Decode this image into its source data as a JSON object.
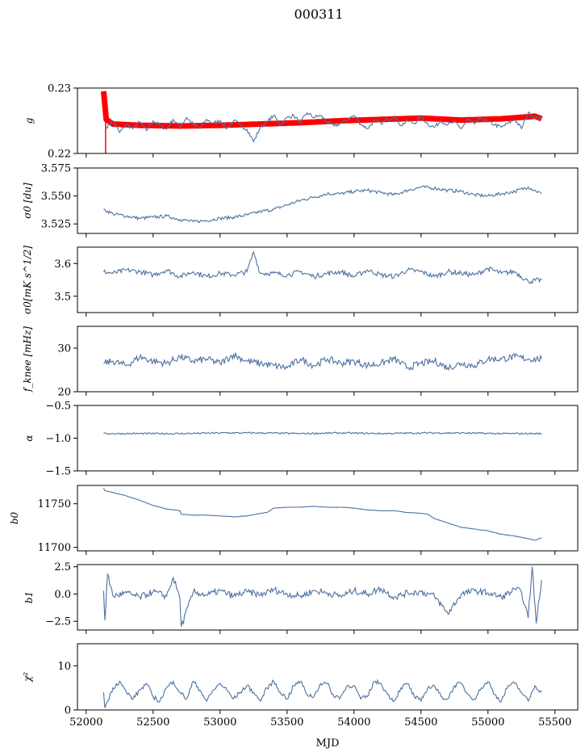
{
  "chart_data": [
    {
      "type": "line",
      "panel": "g",
      "title": "000311",
      "ylabel": "g",
      "ylim": [
        0.22,
        0.23
      ],
      "yticks": [
        0.22,
        0.23
      ],
      "xlim": [
        51935,
        55670
      ],
      "series": [
        {
          "name": "g (smoothed fit)",
          "color": "#ff0000",
          "style": "band",
          "x": [
            52130,
            52150,
            52200,
            52400,
            52700,
            53000,
            53300,
            53600,
            53900,
            54200,
            54500,
            54800,
            55100,
            55300,
            55350,
            55400
          ],
          "y": [
            0.2295,
            0.2252,
            0.2245,
            0.2243,
            0.2242,
            0.2243,
            0.2245,
            0.2247,
            0.225,
            0.2252,
            0.2254,
            0.2251,
            0.2253,
            0.2256,
            0.2257,
            0.2253
          ]
        },
        {
          "name": "g",
          "color": "#4c72a0",
          "x": [
            52150,
            52200,
            52250,
            52300,
            52350,
            52400,
            52450,
            52500,
            52550,
            52600,
            52650,
            52700,
            52750,
            52800,
            52850,
            52900,
            52950,
            53000,
            53050,
            53100,
            53150,
            53200,
            53250,
            53300,
            53350,
            53400,
            53450,
            53500,
            53550,
            53600,
            53650,
            53700,
            53750,
            53800,
            53850,
            53900,
            53950,
            54000,
            54050,
            54100,
            54150,
            54200,
            54250,
            54300,
            54350,
            54400,
            54450,
            54500,
            54550,
            54600,
            54650,
            54700,
            54750,
            54800,
            54850,
            54900,
            54950,
            55000,
            55050,
            55100,
            55150,
            55200,
            55250,
            55300,
            55350,
            55400
          ],
          "y": [
            0.224,
            0.225,
            0.2232,
            0.2245,
            0.2238,
            0.2248,
            0.2235,
            0.225,
            0.2243,
            0.2237,
            0.2252,
            0.224,
            0.2255,
            0.2244,
            0.2238,
            0.2252,
            0.2246,
            0.225,
            0.2238,
            0.225,
            0.2244,
            0.2237,
            0.2218,
            0.224,
            0.2248,
            0.2258,
            0.2244,
            0.2255,
            0.2258,
            0.2247,
            0.2262,
            0.2255,
            0.2258,
            0.2248,
            0.2242,
            0.2246,
            0.2252,
            0.2258,
            0.2245,
            0.2238,
            0.225,
            0.2246,
            0.2252,
            0.2257,
            0.2243,
            0.225,
            0.2246,
            0.2257,
            0.2245,
            0.224,
            0.225,
            0.2244,
            0.2248,
            0.2238,
            0.2252,
            0.2245,
            0.2254,
            0.2248,
            0.2244,
            0.224,
            0.2246,
            0.2252,
            0.2238,
            0.2262,
            0.2255,
            0.2253
          ]
        }
      ]
    },
    {
      "type": "line",
      "panel": "sigma0_du",
      "ylabel": "σ0 [du]",
      "ylim": [
        3.5165,
        3.575
      ],
      "yticks": [
        3.525,
        3.55,
        3.575
      ],
      "series": [
        {
          "name": "sigma0 [du]",
          "color": "#4c72a0",
          "x": [
            52130,
            52200,
            52300,
            52400,
            52500,
            52600,
            52700,
            52800,
            52900,
            53000,
            53100,
            53200,
            53300,
            53400,
            53500,
            53600,
            53700,
            53800,
            53900,
            54000,
            54100,
            54200,
            54300,
            54400,
            54500,
            54600,
            54700,
            54800,
            54900,
            55000,
            55100,
            55200,
            55300,
            55400
          ],
          "y": [
            3.538,
            3.534,
            3.532,
            3.53,
            3.531,
            3.532,
            3.529,
            3.527,
            3.528,
            3.53,
            3.531,
            3.533,
            3.536,
            3.538,
            3.542,
            3.546,
            3.549,
            3.552,
            3.552,
            3.554,
            3.555,
            3.553,
            3.551,
            3.555,
            3.558,
            3.557,
            3.555,
            3.554,
            3.551,
            3.55,
            3.552,
            3.554,
            3.558,
            3.552
          ]
        }
      ]
    },
    {
      "type": "line",
      "panel": "sigma0_mK",
      "ylabel": "σ0[mK s^1/2]",
      "ylim": [
        3.45,
        3.65
      ],
      "yticks": [
        3.5,
        3.6
      ],
      "series": [
        {
          "name": "sigma0 [mK s^1/2]",
          "color": "#4c72a0",
          "x": [
            52130,
            52200,
            52300,
            52400,
            52500,
            52600,
            52700,
            52800,
            52900,
            53000,
            53100,
            53200,
            53250,
            53300,
            53400,
            53500,
            53600,
            53700,
            53800,
            53900,
            54000,
            54100,
            54200,
            54300,
            54400,
            54500,
            54600,
            54700,
            54800,
            54900,
            55000,
            55100,
            55200,
            55300,
            55400
          ],
          "y": [
            3.575,
            3.57,
            3.58,
            3.575,
            3.565,
            3.58,
            3.56,
            3.575,
            3.56,
            3.57,
            3.565,
            3.575,
            3.635,
            3.57,
            3.57,
            3.565,
            3.575,
            3.56,
            3.57,
            3.575,
            3.56,
            3.58,
            3.565,
            3.56,
            3.58,
            3.575,
            3.56,
            3.575,
            3.57,
            3.565,
            3.585,
            3.57,
            3.575,
            3.545,
            3.55
          ]
        }
      ]
    },
    {
      "type": "line",
      "panel": "fknee",
      "ylabel": "f_knee [mHz]",
      "ylim": [
        20,
        35
      ],
      "yticks": [
        20,
        30
      ],
      "series": [
        {
          "name": "f_knee [mHz]",
          "color": "#4c72a0",
          "x": [
            52130,
            52200,
            52300,
            52400,
            52500,
            52600,
            52700,
            52800,
            52900,
            53000,
            53100,
            53200,
            53300,
            53400,
            53500,
            53600,
            53700,
            53800,
            53900,
            54000,
            54100,
            54200,
            54300,
            54400,
            54500,
            54600,
            54700,
            54800,
            54900,
            55000,
            55100,
            55200,
            55300,
            55400
          ],
          "y": [
            26.5,
            27.0,
            26.0,
            28.0,
            27.0,
            26.5,
            28.0,
            27.0,
            27.5,
            26.5,
            28.5,
            27.0,
            26.5,
            26.0,
            25.5,
            27.5,
            26.0,
            27.5,
            26.5,
            27.0,
            26.0,
            26.5,
            27.5,
            25.5,
            26.5,
            27.0,
            25.5,
            26.5,
            26.0,
            27.5,
            27.5,
            28.0,
            27.5,
            27.5
          ]
        }
      ]
    },
    {
      "type": "line",
      "panel": "alpha",
      "ylabel": "α",
      "ylim": [
        -1.5,
        -0.5
      ],
      "yticks": [
        -1.5,
        -1.0,
        -0.5
      ],
      "series": [
        {
          "name": "alpha",
          "color": "#4c72a0",
          "x": [
            52130,
            52400,
            52700,
            53000,
            53300,
            53600,
            53900,
            54200,
            54500,
            54800,
            55100,
            55400
          ],
          "y": [
            -0.93,
            -0.93,
            -0.93,
            -0.92,
            -0.92,
            -0.93,
            -0.92,
            -0.93,
            -0.92,
            -0.92,
            -0.93,
            -0.93
          ]
        }
      ]
    },
    {
      "type": "line",
      "panel": "b0",
      "ylabel": "b0",
      "ylim": [
        11696,
        11771
      ],
      "yticks": [
        11700,
        11750
      ],
      "series": [
        {
          "name": "b0",
          "color": "#4c72a0",
          "x": [
            52130,
            52140,
            52200,
            52300,
            52400,
            52500,
            52600,
            52700,
            52710,
            52800,
            52900,
            53000,
            53100,
            53200,
            53300,
            53350,
            53400,
            53500,
            53600,
            53700,
            53800,
            53900,
            54000,
            54100,
            54200,
            54300,
            54400,
            54500,
            54550,
            54600,
            54700,
            54800,
            54900,
            55000,
            55100,
            55200,
            55300,
            55350,
            55400
          ],
          "y": [
            11768,
            11765,
            11763,
            11759,
            11754,
            11748,
            11744,
            11742,
            11738,
            11737,
            11737,
            11736,
            11735,
            11736,
            11739,
            11740,
            11745,
            11746,
            11746,
            11747,
            11746,
            11746,
            11745,
            11743,
            11742,
            11742,
            11740,
            11739,
            11738,
            11733,
            11728,
            11723,
            11721,
            11719,
            11715,
            11713,
            11710,
            11708,
            11711
          ]
        }
      ]
    },
    {
      "type": "line",
      "panel": "b1",
      "ylabel": "b1",
      "ylim": [
        -3.3,
        2.7
      ],
      "yticks": [
        -2.5,
        0.0,
        2.5
      ],
      "series": [
        {
          "name": "b1",
          "color": "#4c72a0",
          "x": [
            52130,
            52140,
            52160,
            52200,
            52300,
            52400,
            52500,
            52600,
            52650,
            52700,
            52710,
            52800,
            52900,
            53000,
            53100,
            53200,
            53300,
            53400,
            53500,
            53600,
            53700,
            53800,
            53900,
            54000,
            54100,
            54200,
            54300,
            54400,
            54500,
            54600,
            54700,
            54800,
            54900,
            55000,
            55100,
            55200,
            55250,
            55300,
            55330,
            55360,
            55400
          ],
          "y": [
            0.3,
            -2.4,
            1.8,
            -0.2,
            0.1,
            -0.3,
            0.2,
            -0.2,
            1.5,
            -0.4,
            -3.0,
            0.2,
            -0.1,
            0.3,
            -0.2,
            0.2,
            -0.1,
            0.4,
            0.0,
            -0.2,
            0.3,
            0.1,
            -0.2,
            0.3,
            0.0,
            0.5,
            -0.3,
            0.1,
            0.2,
            -0.2,
            -1.8,
            0.0,
            0.3,
            0.1,
            -0.3,
            0.4,
            0.2,
            -2.2,
            2.5,
            -2.7,
            1.3
          ]
        }
      ]
    },
    {
      "type": "line",
      "panel": "chi2",
      "ylabel": "χ²",
      "xlabel": "MJD",
      "ylim": [
        0,
        15
      ],
      "yticks": [
        0,
        10
      ],
      "xticks": [
        52000,
        52500,
        53000,
        53500,
        54000,
        54500,
        55000,
        55500
      ],
      "series": [
        {
          "name": "chi2",
          "color": "#4c72a0",
          "x": [
            52130,
            52140,
            52200,
            52250,
            52300,
            52350,
            52400,
            52450,
            52500,
            52550,
            52600,
            52650,
            52700,
            52750,
            52800,
            52850,
            52900,
            52950,
            53000,
            53050,
            53100,
            53150,
            53200,
            53250,
            53300,
            53350,
            53400,
            53450,
            53500,
            53550,
            53600,
            53650,
            53700,
            53750,
            53800,
            53850,
            53900,
            53950,
            54000,
            54050,
            54100,
            54150,
            54200,
            54250,
            54300,
            54350,
            54400,
            54450,
            54500,
            54550,
            54600,
            54650,
            54700,
            54750,
            54800,
            54850,
            54900,
            54950,
            55000,
            55050,
            55100,
            55150,
            55200,
            55250,
            55300,
            55350,
            55400
          ],
          "y": [
            4.0,
            0.5,
            5.0,
            6.5,
            4.0,
            2.5,
            4.5,
            6.0,
            3.0,
            2.0,
            5.0,
            6.5,
            4.0,
            2.5,
            6.5,
            4.5,
            2.0,
            4.5,
            6.0,
            4.5,
            2.5,
            4.0,
            5.5,
            4.0,
            2.0,
            5.0,
            6.5,
            4.0,
            2.5,
            5.5,
            6.5,
            3.5,
            3.0,
            6.0,
            6.0,
            3.0,
            3.0,
            5.5,
            5.5,
            2.5,
            3.0,
            6.5,
            6.0,
            3.5,
            2.0,
            5.0,
            6.0,
            3.0,
            2.0,
            5.0,
            5.5,
            3.0,
            2.5,
            5.5,
            6.0,
            3.5,
            2.5,
            5.0,
            6.5,
            3.5,
            2.0,
            5.5,
            6.0,
            4.0,
            2.0,
            5.5,
            4.0
          ]
        }
      ]
    }
  ],
  "figure": {
    "title": "000311",
    "xlabel": "MJD",
    "line_color": "#4c72a0",
    "fit_color": "#ff0000"
  }
}
